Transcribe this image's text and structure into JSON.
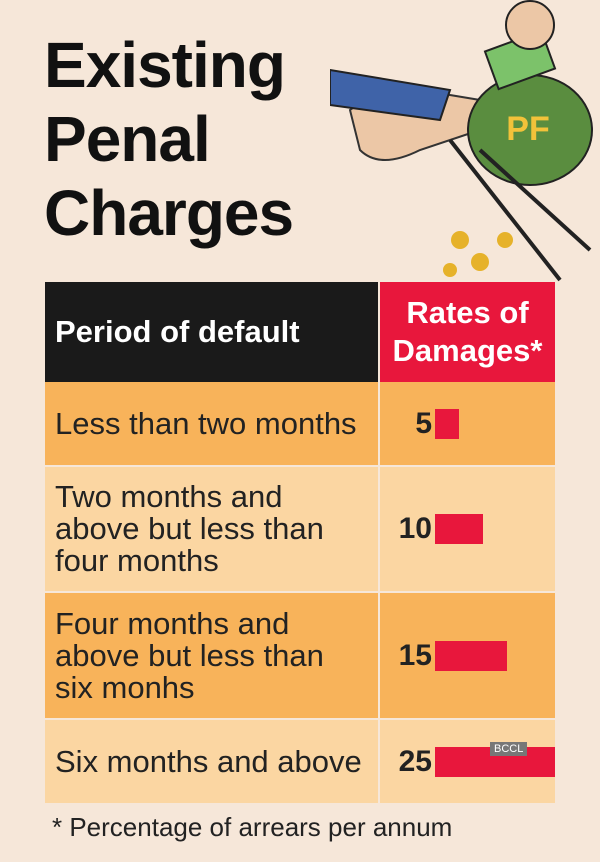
{
  "chart_data": {
    "type": "bar",
    "title": "Existing Penal Charges",
    "column_headers": [
      "Period of default",
      "Rates of Damages*"
    ],
    "categories": [
      "Less than two months",
      "Two months and above but less than four months",
      "Four months and above but less than six monhs",
      "Six months and above"
    ],
    "values": [
      5,
      10,
      15,
      25
    ],
    "color": "#e8173c",
    "footnote": "* Percentage of arrears per annum",
    "watermark": "BCCL",
    "illustration_label": "PF"
  }
}
